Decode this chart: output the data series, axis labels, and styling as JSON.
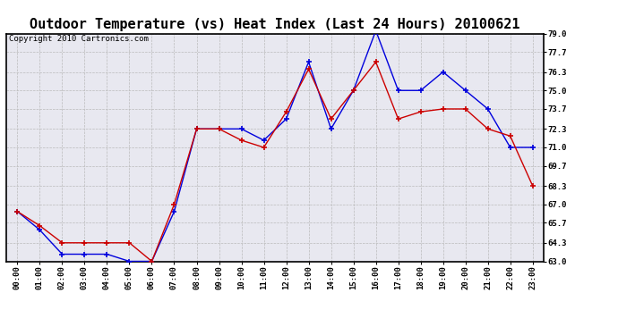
{
  "title": "Outdoor Temperature (vs) Heat Index (Last 24 Hours) 20100621",
  "copyright": "Copyright 2010 Cartronics.com",
  "x_labels": [
    "00:00",
    "01:00",
    "02:00",
    "03:00",
    "04:00",
    "05:00",
    "06:00",
    "07:00",
    "08:00",
    "09:00",
    "10:00",
    "11:00",
    "12:00",
    "13:00",
    "14:00",
    "15:00",
    "16:00",
    "17:00",
    "18:00",
    "19:00",
    "20:00",
    "21:00",
    "22:00",
    "23:00"
  ],
  "blue_data": [
    66.5,
    65.2,
    63.5,
    63.5,
    63.5,
    63.0,
    63.0,
    66.5,
    72.3,
    72.3,
    72.3,
    71.5,
    73.0,
    77.0,
    72.3,
    75.0,
    79.2,
    75.0,
    75.0,
    76.3,
    75.0,
    73.7,
    71.0,
    71.0
  ],
  "red_data": [
    66.5,
    65.5,
    64.3,
    64.3,
    64.3,
    64.3,
    63.0,
    67.0,
    72.3,
    72.3,
    71.5,
    71.0,
    73.5,
    76.5,
    73.0,
    75.0,
    77.0,
    73.0,
    73.5,
    73.7,
    73.7,
    72.3,
    71.8,
    68.3
  ],
  "blue_color": "#0000dd",
  "red_color": "#cc0000",
  "ylim_min": 63.0,
  "ylim_max": 79.0,
  "yticks": [
    63.0,
    64.3,
    65.7,
    67.0,
    68.3,
    69.7,
    71.0,
    72.3,
    73.7,
    75.0,
    76.3,
    77.7,
    79.0
  ],
  "bg_color": "#ffffff",
  "plot_bg": "#e8e8f0",
  "grid_color": "#bbbbbb",
  "title_fontsize": 11,
  "tick_fontsize": 6.5,
  "copyright_fontsize": 6.5,
  "linewidth": 1.0,
  "marker_size": 4
}
